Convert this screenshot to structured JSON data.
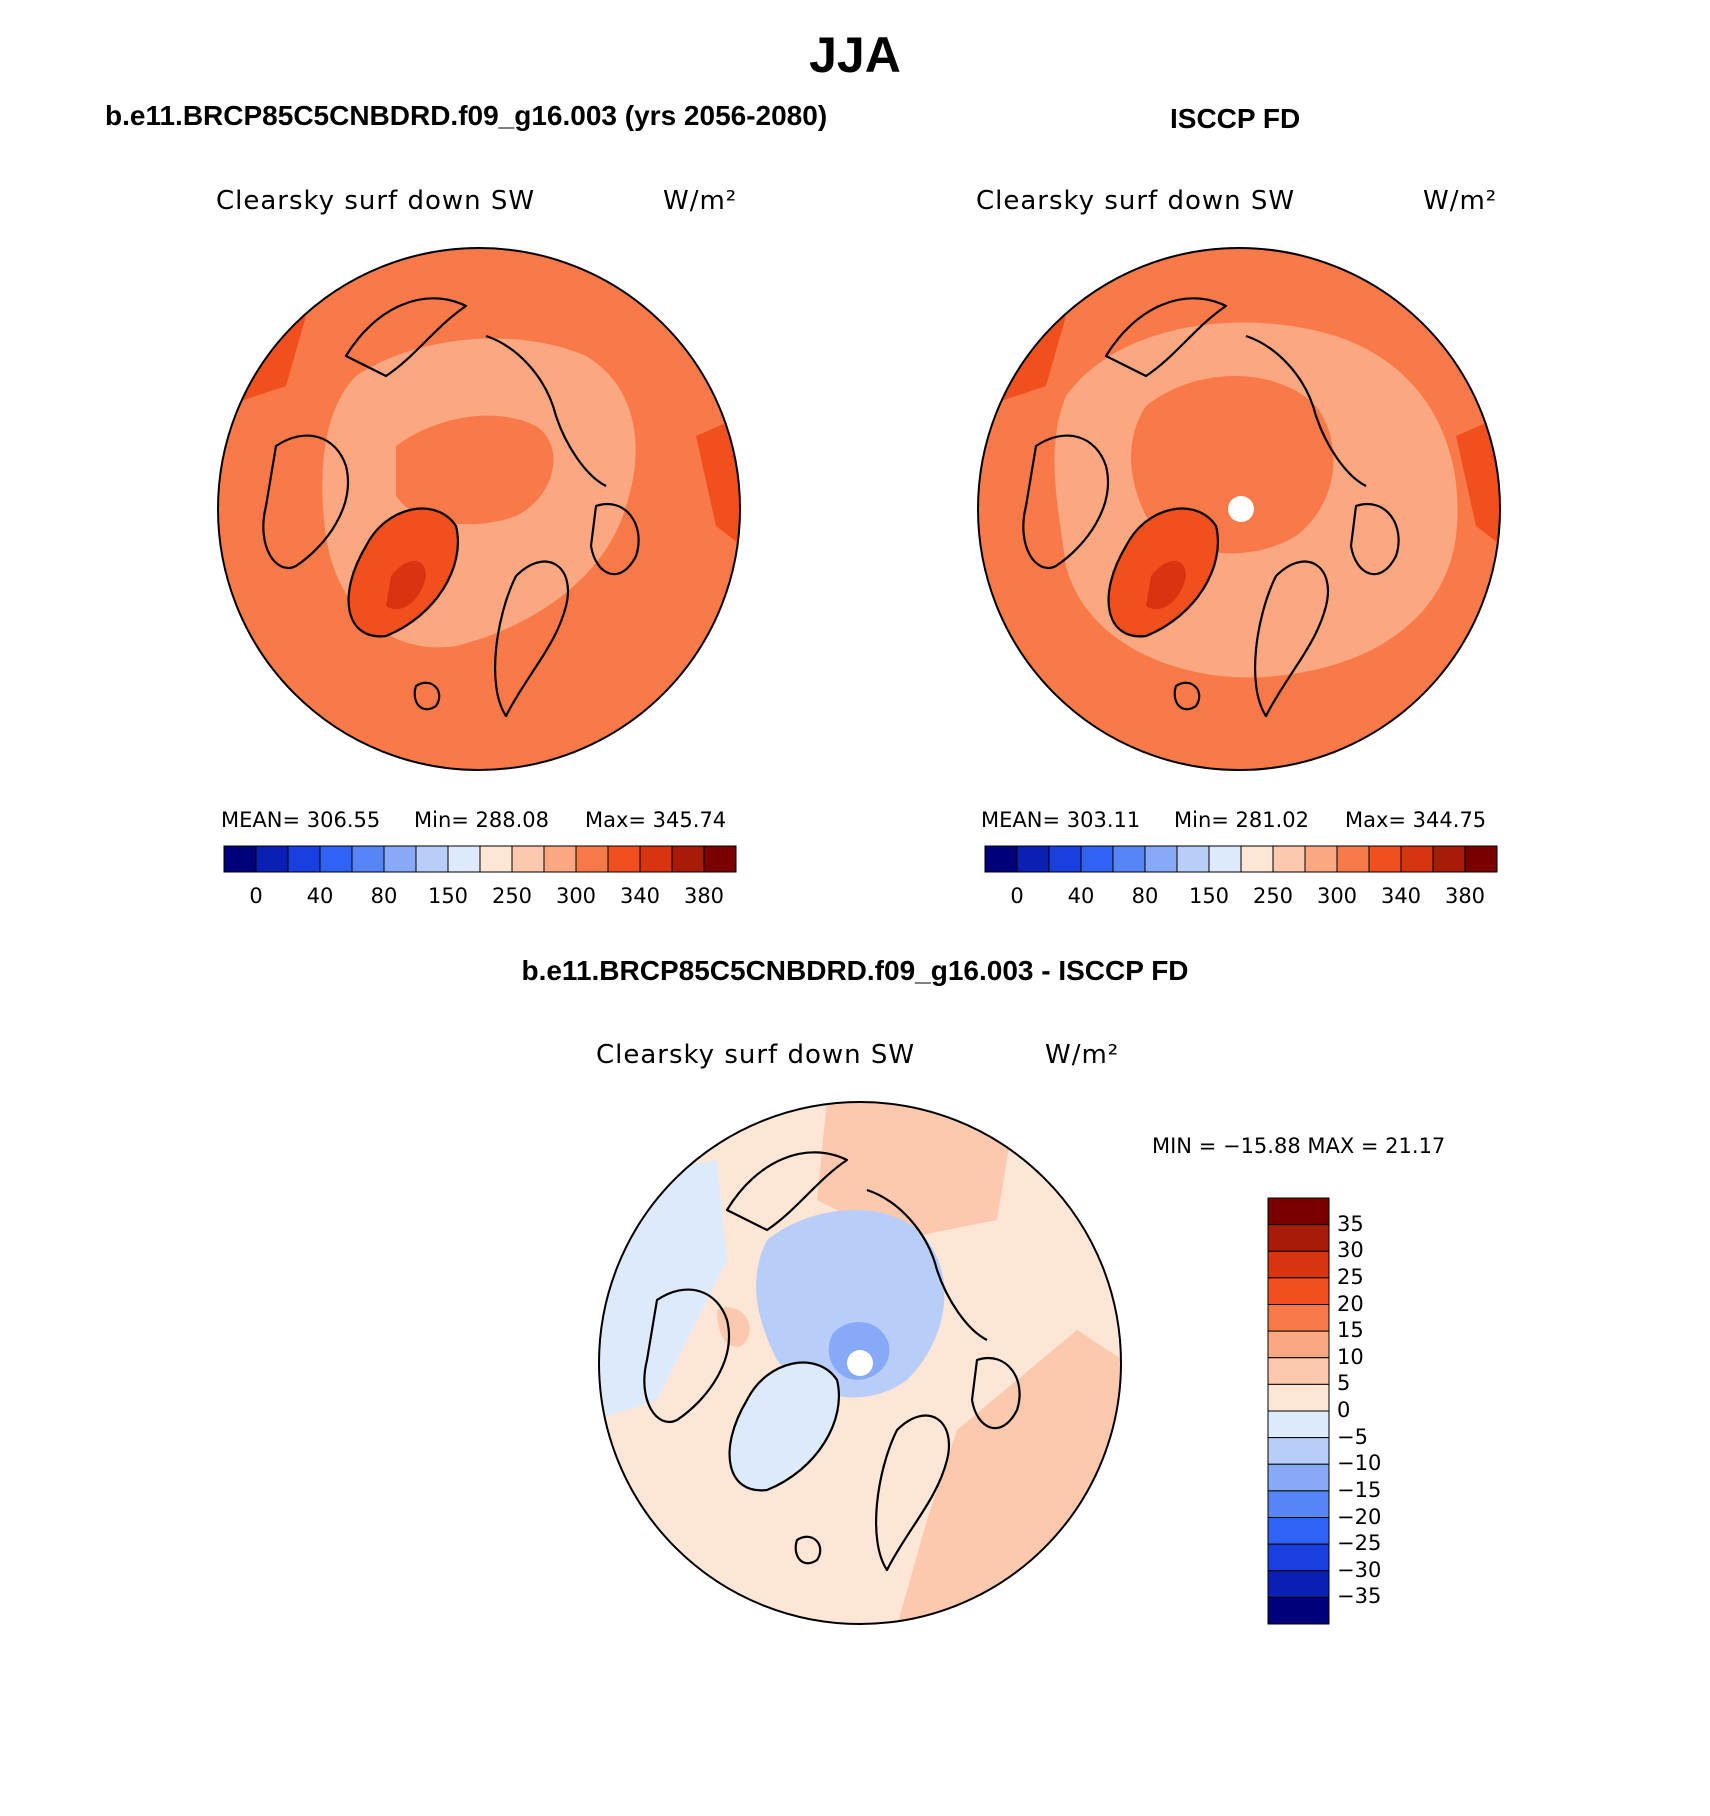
{
  "figure_title": "JJA",
  "panels": [
    {
      "title": "b.e11.BRCP85C5CNBDRD.f09_g16.003 (yrs 2056-2080)",
      "variable": "Clearsky surf down SW",
      "units": "W/m²",
      "stats": {
        "mean": "MEAN= 306.55",
        "min": "Min= 288.08",
        "max": "Max= 345.74"
      },
      "colorbar_ticks": [
        "0",
        "40",
        "80",
        "150",
        "250",
        "300",
        "340",
        "380"
      ]
    },
    {
      "title": "ISCCP FD",
      "variable": "Clearsky surf down SW",
      "units": "W/m²",
      "stats": {
        "mean": "MEAN= 303.11",
        "min": "Min= 281.02",
        "max": "Max= 344.75"
      },
      "colorbar_ticks": [
        "0",
        "40",
        "80",
        "150",
        "250",
        "300",
        "340",
        "380"
      ]
    },
    {
      "title": "b.e11.BRCP85C5CNBDRD.f09_g16.003 - ISCCP FD",
      "variable": "Clearsky surf down SW",
      "units": "W/m²",
      "stats": {
        "minmax": "MIN = −15.88  MAX =   21.17"
      },
      "colorbar_ticks": [
        "35",
        "30",
        "25",
        "20",
        "15",
        "10",
        "5",
        "0",
        "−5",
        "−10",
        "−15",
        "−20",
        "−25",
        "−30",
        "−35"
      ]
    }
  ],
  "colors": {
    "abs_scale": [
      "#00007a",
      "#0a1fb3",
      "#1a3fe0",
      "#2f62f5",
      "#5686f5",
      "#86aaf7",
      "#b8cef9",
      "#ddeafb",
      "#fde6d6",
      "#fcc8ae",
      "#fba882",
      "#f97a48",
      "#f24f1e",
      "#d8340f",
      "#a81b08",
      "#7a0000"
    ],
    "diff_scale": [
      "#7a0000",
      "#a81b08",
      "#d8340f",
      "#f24f1e",
      "#f97a48",
      "#fba882",
      "#fcc8ae",
      "#fde6d6",
      "#ddeafb",
      "#b8cef9",
      "#86aaf7",
      "#5686f5",
      "#2f62f5",
      "#1a3fe0",
      "#0a1fb3",
      "#00007a"
    ]
  }
}
